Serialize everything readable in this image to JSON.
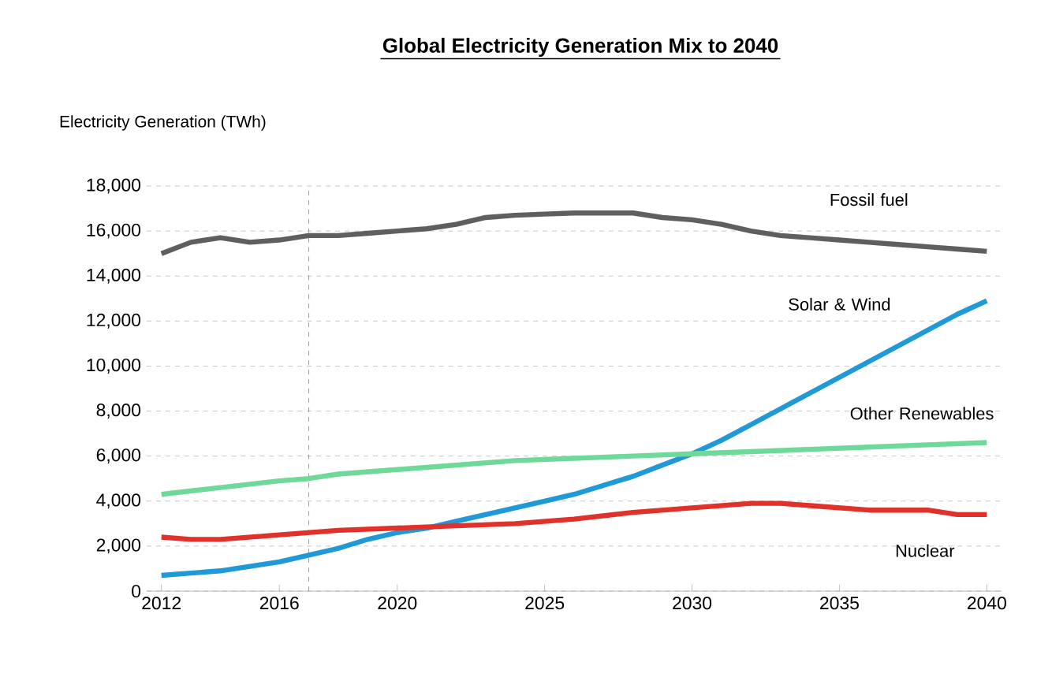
{
  "chart_data": {
    "type": "line",
    "title": "**Global Electricity Generation Mix to 2040**",
    "ylabel": "Electricity Generation  (TWh)",
    "xlim": [
      2011.5,
      2040.5
    ],
    "xticks": [
      2012,
      2016,
      2020,
      2025,
      2030,
      2035,
      2040
    ],
    "ylim": [
      0,
      18000
    ],
    "yticks": [
      0,
      {
        "value": 2000,
        "label": "2,000"
      },
      {
        "value": 4000,
        "label": "4,000"
      },
      {
        "value": 6000,
        "label": "6,000"
      },
      {
        "value": 8000,
        "label": "8,000"
      },
      {
        "value": 10000,
        "label": "10,000"
      },
      {
        "value": 12000,
        "label": "12,000"
      },
      {
        "value": 14000,
        "label": "14,000"
      },
      {
        "value": 16000,
        "label": "16,000"
      },
      {
        "value": 18000,
        "label": "18,000"
      }
    ],
    "grid": "y",
    "marker": "none",
    "line_style": "solid",
    "ref_lines": [
      {
        "axis": "x",
        "value": 2017,
        "color": "#808080",
        "line_style": "dashed"
      }
    ],
    "series": [
      {
        "name": "Fossil fuel",
        "color": "#5f5f5f",
        "x": [
          2012,
          2013,
          2014,
          2015,
          2016,
          2017,
          2018,
          2019,
          2020,
          2021,
          2022,
          2023,
          2024,
          2025,
          2026,
          2027,
          2028,
          2029,
          2030,
          2031,
          2032,
          2033,
          2034,
          2035,
          2036,
          2037,
          2038,
          2039,
          2040
        ],
        "values": [
          15000,
          15500,
          15700,
          15500,
          15600,
          15800,
          15800,
          15900,
          16000,
          16100,
          16300,
          16600,
          16700,
          16750,
          16800,
          16800,
          16800,
          16600,
          16500,
          16300,
          16000,
          15800,
          15700,
          15600,
          15500,
          15400,
          15300,
          15200,
          15100
        ]
      },
      {
        "name": "Solar & Wind",
        "color": "#1f9ad6",
        "x": [
          2012,
          2013,
          2014,
          2015,
          2016,
          2017,
          2018,
          2019,
          2020,
          2021,
          2022,
          2023,
          2024,
          2025,
          2026,
          2027,
          2028,
          2029,
          2030,
          2031,
          2032,
          2033,
          2034,
          2035,
          2036,
          2037,
          2038,
          2039,
          2040
        ],
        "values": [
          700,
          800,
          900,
          1100,
          1300,
          1600,
          1900,
          2300,
          2600,
          2800,
          3100,
          3400,
          3700,
          4000,
          4300,
          4700,
          5100,
          5600,
          6100,
          6700,
          7400,
          8100,
          8800,
          9500,
          10200,
          10900,
          11600,
          12300,
          12900
        ]
      },
      {
        "name": "Other Renewables",
        "color": "#6fd99a",
        "x": [
          2012,
          2014,
          2016,
          2017,
          2018,
          2020,
          2022,
          2024,
          2026,
          2028,
          2030,
          2032,
          2034,
          2036,
          2038,
          2040
        ],
        "values": [
          4300,
          4600,
          4900,
          5000,
          5200,
          5400,
          5600,
          5800,
          5900,
          6000,
          6100,
          6200,
          6300,
          6400,
          6500,
          6600
        ]
      },
      {
        "name": "Nuclear",
        "color": "#e0312b",
        "x": [
          2012,
          2013,
          2014,
          2016,
          2018,
          2020,
          2022,
          2024,
          2026,
          2028,
          2030,
          2032,
          2033,
          2034,
          2036,
          2038,
          2039,
          2040
        ],
        "values": [
          2400,
          2300,
          2300,
          2500,
          2700,
          2800,
          2900,
          3000,
          3200,
          3500,
          3700,
          3900,
          3900,
          3800,
          3600,
          3600,
          3400,
          3400
        ]
      }
    ]
  }
}
